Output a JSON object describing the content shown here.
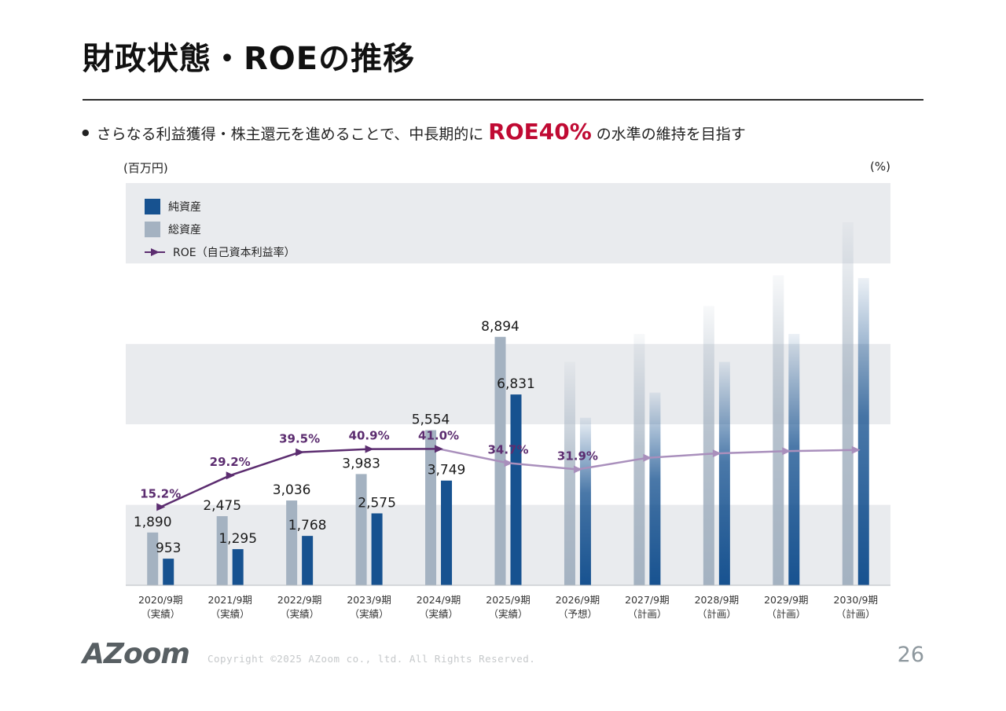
{
  "slide": {
    "title": "財政状態・ROEの推移",
    "bullet": {
      "pre": "さらなる利益獲得・株主還元を進めることで、中長期的に",
      "highlight": "ROE40%",
      "post": "の水準の維持を目指す"
    },
    "unit_left": "(百万円)",
    "unit_right": "(%)",
    "footer": {
      "logo": "AZoom",
      "copyright": "Copyright ©2025 AZoom co., ltd. All Rights Reserved.",
      "page": "26"
    }
  },
  "legend": [
    {
      "label": "純資産",
      "type": "square",
      "color": "#175290"
    },
    {
      "label": "総資産",
      "type": "square",
      "color": "#a4b2c1"
    },
    {
      "label": "ROE（自己資本利益率）",
      "type": "line-triangle",
      "color": "#5c2d70"
    }
  ],
  "chart_data": {
    "type": "bar+line",
    "title": "財政状態・ROEの推移",
    "unit_left": "百万円",
    "unit_right": "%",
    "categories": [
      "2020/9期",
      "2021/9期",
      "2022/9期",
      "2023/9期",
      "2024/9期",
      "2025/9期",
      "2026/9期",
      "2027/9期",
      "2028/9期",
      "2029/9期",
      "2030/9期"
    ],
    "category_notes": [
      "（実績）",
      "（実績）",
      "（実績）",
      "（実績）",
      "（実績）",
      "（実績）",
      "（予想）",
      "（計画）",
      "（計画）",
      "（計画）",
      "（計画）"
    ],
    "series": [
      {
        "name": "総資産",
        "color": "#a4b2c1",
        "values": [
          1890,
          2475,
          3036,
          3983,
          5554,
          8894,
          8000,
          9000,
          10000,
          11100,
          13000
        ],
        "labels": [
          "1,890",
          "2,475",
          "3,036",
          "3,983",
          "5,554",
          "8,894",
          "",
          "",
          "",
          "",
          ""
        ]
      },
      {
        "name": "純資産",
        "color": "#175290",
        "values": [
          953,
          1295,
          1768,
          2575,
          3749,
          6831,
          6000,
          6900,
          8000,
          9000,
          11000
        ],
        "labels": [
          "953",
          "1,295",
          "1,768",
          "2,575",
          "3,749",
          "6,831",
          "",
          "",
          "",
          "",
          ""
        ]
      }
    ],
    "line": {
      "name": "ROE（自己資本利益率）",
      "values": [
        15.2,
        29.2,
        39.5,
        40.9,
        41.0,
        34.7,
        31.9,
        37.0,
        39.0,
        40.0,
        40.5
      ],
      "labels": [
        "15.2%",
        "29.2%",
        "39.5%",
        "40.9%",
        "41.0%",
        "34.7%",
        "31.9%",
        "",
        "",
        "",
        ""
      ],
      "actual_until_index": 4,
      "color_actual": "#5c2d70",
      "color_plan": "#a98fbc"
    },
    "axis": {
      "left_min": 0,
      "left_max": 14400
    },
    "plan_from_index": 6,
    "band_color": "#e9ebee",
    "grid": "horizontal-bands",
    "legend_position": "top-left"
  }
}
